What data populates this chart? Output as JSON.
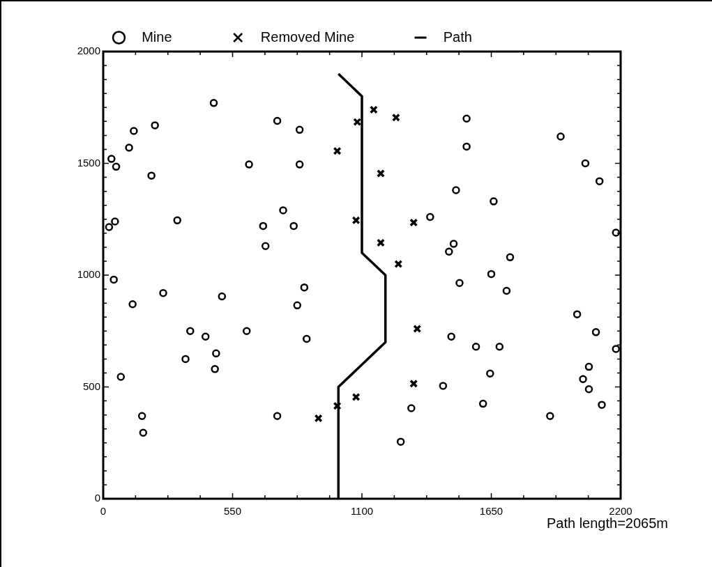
{
  "chart_data": {
    "type": "scatter",
    "xlim": [
      0,
      2200
    ],
    "ylim": [
      0,
      2000
    ],
    "xticks": [
      0,
      {
        "value": 137.5,
        "label": null
      },
      {
        "value": 275,
        "label": null
      },
      {
        "value": 412.5,
        "label": null
      },
      550,
      {
        "value": 687.5,
        "label": null
      },
      {
        "value": 825,
        "label": null
      },
      {
        "value": 962.5,
        "label": null
      },
      1100,
      {
        "value": 1237.5,
        "label": null
      },
      {
        "value": 1375,
        "label": null
      },
      {
        "value": 1512.5,
        "label": null
      },
      1650,
      {
        "value": 1787.5,
        "label": null
      },
      {
        "value": 1925,
        "label": null
      },
      {
        "value": 2062.5,
        "label": null
      },
      2200
    ],
    "yticks": [
      0,
      {
        "value": 62.5,
        "label": null
      },
      {
        "value": 125,
        "label": null
      },
      {
        "value": 187.5,
        "label": null
      },
      {
        "value": 250,
        "label": null
      },
      {
        "value": 312.5,
        "label": null
      },
      {
        "value": 375,
        "label": null
      },
      {
        "value": 437.5,
        "label": null
      },
      500,
      {
        "value": 562.5,
        "label": null
      },
      {
        "value": 625,
        "label": null
      },
      {
        "value": 687.5,
        "label": null
      },
      {
        "value": 750,
        "label": null
      },
      {
        "value": 812.5,
        "label": null
      },
      {
        "value": 875,
        "label": null
      },
      {
        "value": 937.5,
        "label": null
      },
      1000,
      {
        "value": 1062.5,
        "label": null
      },
      {
        "value": 1125,
        "label": null
      },
      {
        "value": 1187.5,
        "label": null
      },
      {
        "value": 1250,
        "label": null
      },
      {
        "value": 1312.5,
        "label": null
      },
      {
        "value": 1375,
        "label": null
      },
      {
        "value": 1437.5,
        "label": null
      },
      1500,
      {
        "value": 1562.5,
        "label": null
      },
      {
        "value": 1625,
        "label": null
      },
      {
        "value": 1687.5,
        "label": null
      },
      {
        "value": 1750,
        "label": null
      },
      {
        "value": 1812.5,
        "label": null
      },
      {
        "value": 1875,
        "label": null
      },
      {
        "value": 1937.5,
        "label": null
      },
      2000
    ],
    "legend": "top",
    "grid": false,
    "annotations": [
      "Path length=2065m"
    ],
    "series": [
      {
        "name": "Mine",
        "type": "scatter",
        "marker": "circle",
        "color": "#000000",
        "x": [
          470,
          130,
          220,
          110,
          35,
          55,
          205,
          740,
          835,
          620,
          835,
          765,
          680,
          810,
          690,
          315,
          50,
          25,
          45,
          125,
          255,
          505,
          855,
          825,
          865,
          370,
          435,
          610,
          350,
          480,
          475,
          75,
          165,
          170,
          740,
          1545,
          1545,
          1945,
          2050,
          2110,
          1500,
          1660,
          1390,
          1490,
          1470,
          1730,
          1650,
          2180,
          1515,
          1715,
          2015,
          2095,
          2180,
          1480,
          1585,
          1685,
          1645,
          1445,
          2065,
          2040,
          2065,
          1615,
          2120,
          1310,
          1900,
          1265
        ],
        "values": [
          1770,
          1645,
          1670,
          1570,
          1520,
          1485,
          1445,
          1690,
          1650,
          1495,
          1495,
          1290,
          1220,
          1220,
          1130,
          1245,
          1240,
          1215,
          980,
          870,
          920,
          905,
          945,
          865,
          715,
          750,
          725,
          750,
          625,
          650,
          580,
          545,
          370,
          295,
          370,
          1700,
          1575,
          1620,
          1500,
          1420,
          1380,
          1330,
          1260,
          1140,
          1105,
          1080,
          1005,
          1190,
          965,
          930,
          825,
          745,
          670,
          725,
          680,
          680,
          560,
          505,
          590,
          535,
          490,
          425,
          420,
          405,
          370,
          255
        ]
      },
      {
        "name": "Removed Mine",
        "type": "scatter",
        "marker": "cross",
        "color": "#000000",
        "x": [
          995,
          1150,
          1245,
          1080,
          1180,
          1075,
          1320,
          1180,
          1255,
          1335,
          1320,
          915,
          995,
          1075
        ],
        "values": [
          1555,
          1740,
          1705,
          1685,
          1455,
          1245,
          1235,
          1145,
          1050,
          760,
          515,
          360,
          415,
          455
        ]
      },
      {
        "name": "Path",
        "type": "line",
        "marker": "none",
        "color": "#000000",
        "x": [
          1000,
          1000,
          1200,
          1200,
          1100,
          1100,
          1000
        ],
        "values": [
          0,
          500,
          700,
          1000,
          1100,
          1800,
          1900
        ]
      }
    ]
  }
}
